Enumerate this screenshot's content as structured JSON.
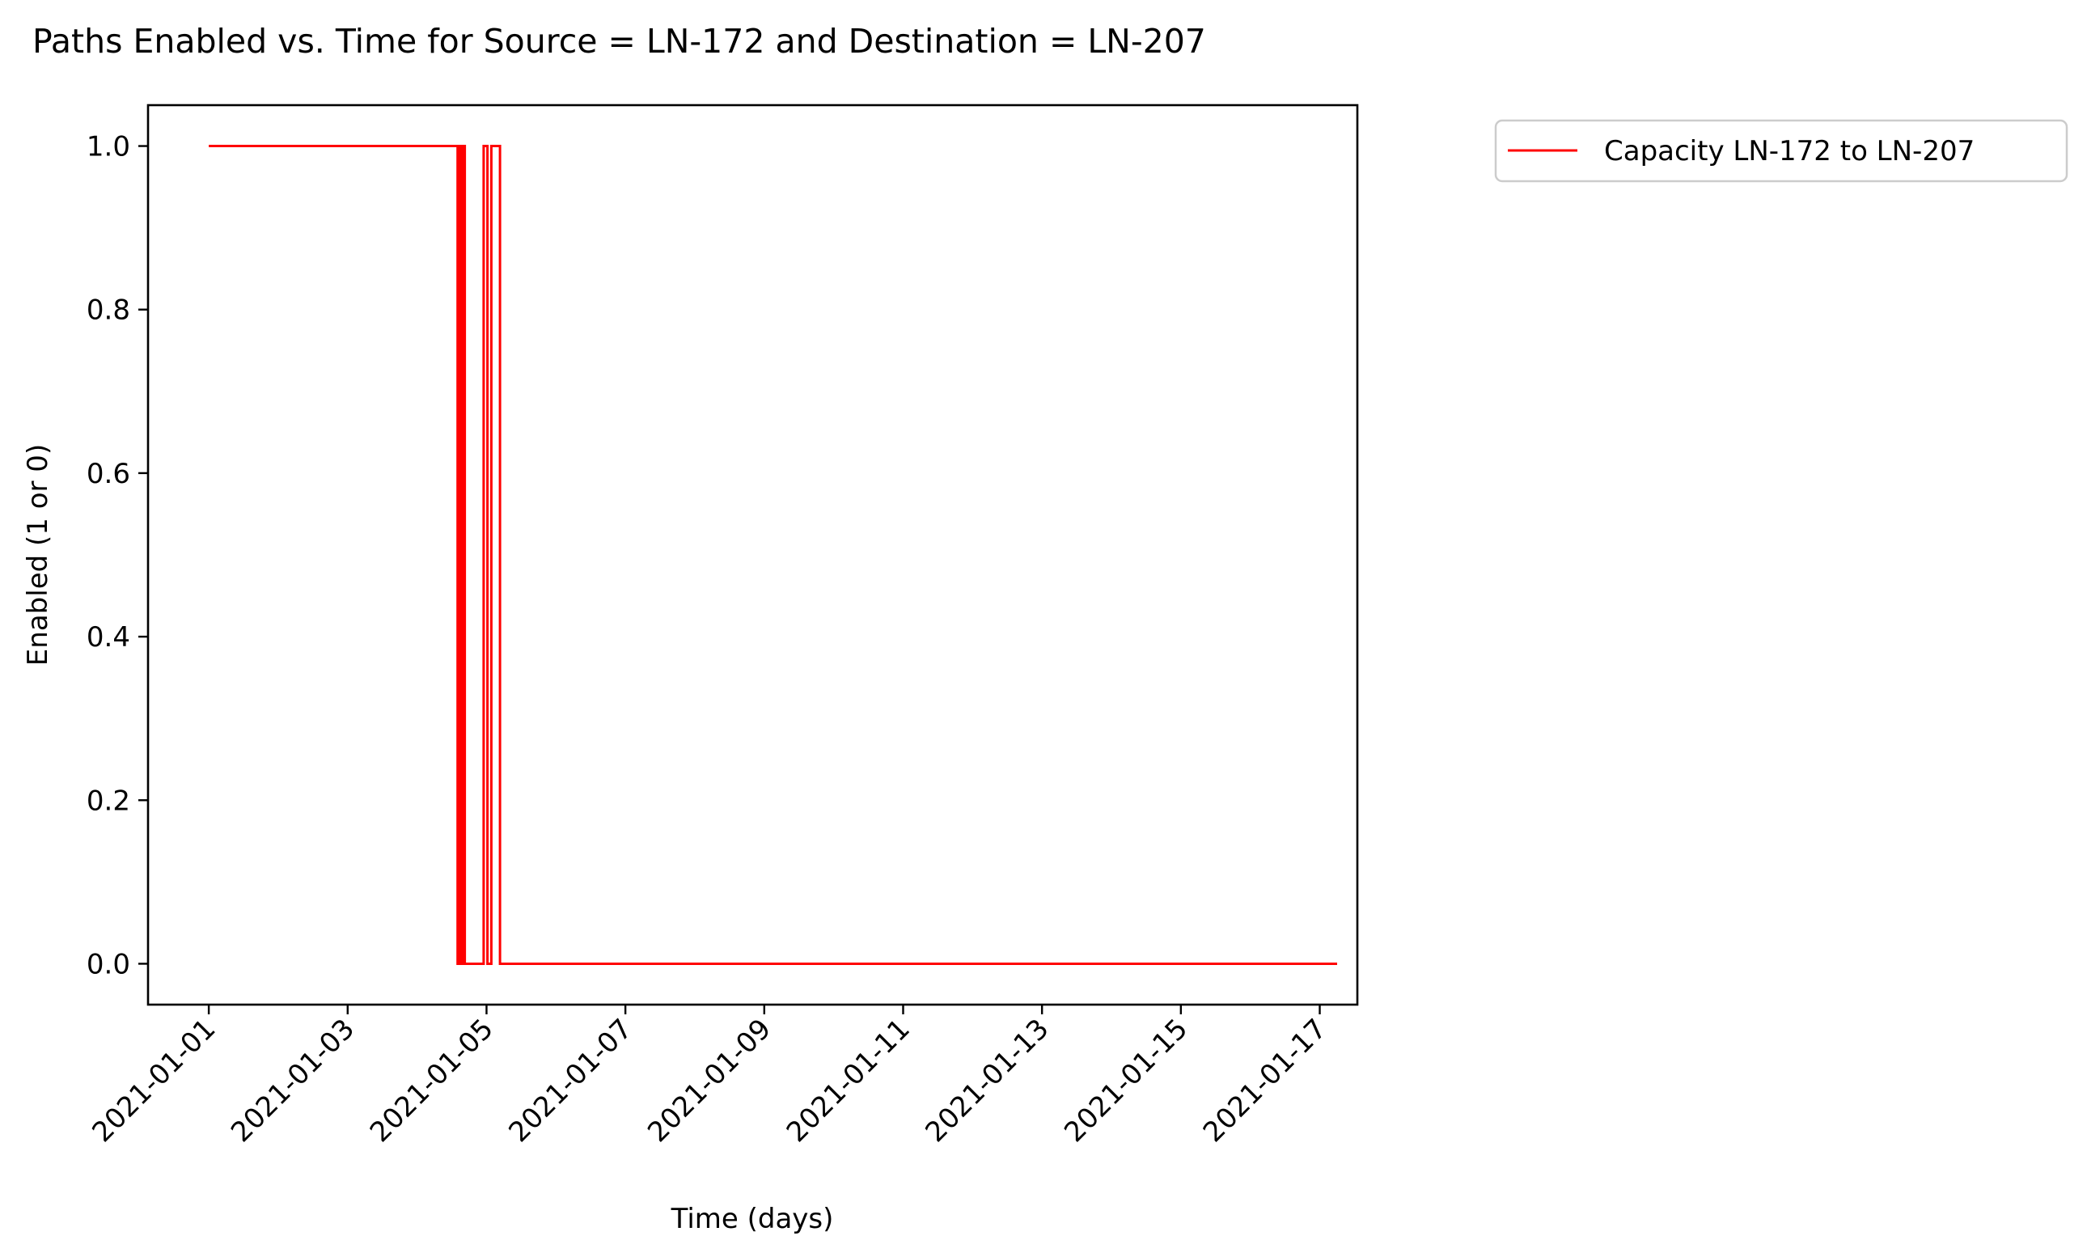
{
  "chart_data": {
    "type": "line",
    "title": "Paths Enabled vs. Time for Source = LN-172 and Destination = LN-207",
    "xlabel": "Time (days)",
    "ylabel": "Enabled (1 or 0)",
    "x_axis_type": "date",
    "xlim": [
      "2020-12-31T03:00",
      "2021-01-17T13:00"
    ],
    "ylim": [
      -0.05,
      1.05
    ],
    "x_ticks": [
      "2021-01-01",
      "2021-01-03",
      "2021-01-05",
      "2021-01-07",
      "2021-01-09",
      "2021-01-11",
      "2021-01-13",
      "2021-01-15",
      "2021-01-17"
    ],
    "y_ticks": [
      0.0,
      0.2,
      0.4,
      0.6,
      0.8,
      1.0
    ],
    "y_tick_labels": [
      "0.0",
      "0.2",
      "0.4",
      "0.6",
      "0.8",
      "1.0"
    ],
    "grid": false,
    "legend_position": "outside-top-right",
    "series": [
      {
        "name": "Capacity LN-172 to LN-207",
        "color": "#ff0000",
        "step": true,
        "points": [
          {
            "x": "2021-01-01T00:00",
            "y": 1
          },
          {
            "x": "2021-01-04T14:00",
            "y": 1
          },
          {
            "x": "2021-01-04T14:00",
            "y": 0
          },
          {
            "x": "2021-01-04T14:40",
            "y": 0
          },
          {
            "x": "2021-01-04T14:40",
            "y": 1
          },
          {
            "x": "2021-01-04T15:10",
            "y": 1
          },
          {
            "x": "2021-01-04T15:10",
            "y": 0
          },
          {
            "x": "2021-01-04T15:40",
            "y": 0
          },
          {
            "x": "2021-01-04T15:40",
            "y": 1
          },
          {
            "x": "2021-01-04T16:30",
            "y": 1
          },
          {
            "x": "2021-01-04T16:30",
            "y": 0
          },
          {
            "x": "2021-01-04T23:00",
            "y": 0
          },
          {
            "x": "2021-01-04T23:00",
            "y": 1
          },
          {
            "x": "2021-01-05T00:20",
            "y": 1
          },
          {
            "x": "2021-01-05T00:20",
            "y": 0
          },
          {
            "x": "2021-01-05T01:40",
            "y": 0
          },
          {
            "x": "2021-01-05T01:40",
            "y": 1
          },
          {
            "x": "2021-01-05T04:40",
            "y": 1
          },
          {
            "x": "2021-01-05T04:40",
            "y": 0
          },
          {
            "x": "2021-01-17T06:00",
            "y": 0
          }
        ]
      }
    ]
  }
}
